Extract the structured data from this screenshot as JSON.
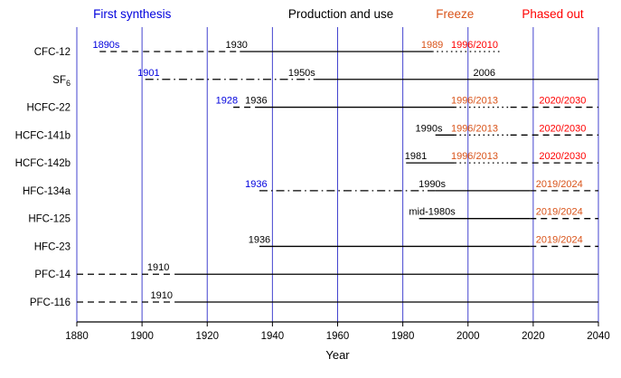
{
  "header_labels": [
    {
      "text": "First synthesis",
      "role": "synthesis",
      "year": 1897
    },
    {
      "text": "Production and use",
      "role": "production",
      "year": 1961
    },
    {
      "text": "Freeze",
      "role": "freeze",
      "year": 1996
    },
    {
      "text": "Phased out",
      "role": "phaseout",
      "year": 2026
    }
  ],
  "chart_data": {
    "type": "timeline",
    "title": "",
    "xlabel": "Year",
    "x_range": [
      1880,
      2040
    ],
    "x_ticks": [
      1880,
      1900,
      1920,
      1940,
      1960,
      1980,
      2000,
      2020,
      2040
    ],
    "grid_on": true,
    "grid_color": "#4343cf",
    "colors": {
      "synthesis": "#0000dd",
      "production": "#000000",
      "freeze": "#d95319",
      "phaseout": "#ff0000"
    },
    "rows": [
      {
        "label": "CFC-12",
        "segments": [
          {
            "from": 1887,
            "to": 1930,
            "style": "dashed"
          },
          {
            "from": 1930,
            "to": 1989,
            "style": "solid"
          },
          {
            "from": 1989,
            "to": 2010,
            "style": "dotted"
          }
        ],
        "annotations": [
          {
            "text": "1890s",
            "year": 1889,
            "role": "synthesis"
          },
          {
            "text": "1930",
            "year": 1929,
            "role": "production"
          },
          {
            "text": "1989",
            "year": 1989,
            "role": "freeze"
          },
          {
            "text": "1996/2010",
            "year": 2002,
            "role": "phaseout"
          }
        ]
      },
      {
        "label": "SF",
        "label_sub": "6",
        "segments": [
          {
            "from": 1901,
            "to": 1953,
            "style": "dashdot"
          },
          {
            "from": 1953,
            "to": 2040,
            "style": "solid"
          }
        ],
        "annotations": [
          {
            "text": "1901",
            "year": 1902,
            "role": "synthesis"
          },
          {
            "text": "1950s",
            "year": 1949,
            "role": "production"
          },
          {
            "text": "2006",
            "year": 2005,
            "role": "production"
          }
        ]
      },
      {
        "label": "HCFC-22",
        "segments": [
          {
            "from": 1928,
            "to": 1936,
            "style": "dashed"
          },
          {
            "from": 1936,
            "to": 1996,
            "style": "solid"
          },
          {
            "from": 1996,
            "to": 2013,
            "style": "dotted"
          },
          {
            "from": 2013,
            "to": 2040,
            "style": "dashed"
          }
        ],
        "annotations": [
          {
            "text": "1928",
            "year": 1926,
            "role": "synthesis"
          },
          {
            "text": "1936",
            "year": 1935,
            "role": "production"
          },
          {
            "text": "1996/2013",
            "year": 2002,
            "role": "freeze"
          },
          {
            "text": "2020/2030",
            "year": 2029,
            "role": "phaseout"
          }
        ]
      },
      {
        "label": "HCFC-141b",
        "segments": [
          {
            "from": 1990,
            "to": 1996,
            "style": "solid"
          },
          {
            "from": 1996,
            "to": 2013,
            "style": "dotted"
          },
          {
            "from": 2013,
            "to": 2040,
            "style": "dashed"
          }
        ],
        "annotations": [
          {
            "text": "1990s",
            "year": 1988,
            "role": "production"
          },
          {
            "text": "1996/2013",
            "year": 2002,
            "role": "freeze"
          },
          {
            "text": "2020/2030",
            "year": 2029,
            "role": "phaseout"
          }
        ]
      },
      {
        "label": "HCFC-142b",
        "segments": [
          {
            "from": 1981,
            "to": 1996,
            "style": "solid"
          },
          {
            "from": 1996,
            "to": 2013,
            "style": "dotted"
          },
          {
            "from": 2013,
            "to": 2040,
            "style": "dashed"
          }
        ],
        "annotations": [
          {
            "text": "1981",
            "year": 1984,
            "role": "production"
          },
          {
            "text": "1996/2013",
            "year": 2002,
            "role": "freeze"
          },
          {
            "text": "2020/2030",
            "year": 2029,
            "role": "phaseout"
          }
        ]
      },
      {
        "label": "HFC-134a",
        "segments": [
          {
            "from": 1936,
            "to": 1990,
            "style": "dashdot"
          },
          {
            "from": 1990,
            "to": 2019,
            "style": "solid"
          },
          {
            "from": 2019,
            "to": 2040,
            "style": "dashed"
          }
        ],
        "annotations": [
          {
            "text": "1936",
            "year": 1935,
            "role": "synthesis"
          },
          {
            "text": "1990s",
            "year": 1989,
            "role": "production"
          },
          {
            "text": "2019/2024",
            "year": 2028,
            "role": "freeze"
          }
        ]
      },
      {
        "label": "HFC-125",
        "segments": [
          {
            "from": 1985,
            "to": 2019,
            "style": "solid"
          },
          {
            "from": 2019,
            "to": 2040,
            "style": "dashed"
          }
        ],
        "annotations": [
          {
            "text": "mid-1980s",
            "year": 1989,
            "role": "production"
          },
          {
            "text": "2019/2024",
            "year": 2028,
            "role": "freeze"
          }
        ]
      },
      {
        "label": "HFC-23",
        "segments": [
          {
            "from": 1936,
            "to": 2019,
            "style": "solid"
          },
          {
            "from": 2019,
            "to": 2040,
            "style": "dashed"
          }
        ],
        "annotations": [
          {
            "text": "1936",
            "year": 1936,
            "role": "production"
          },
          {
            "text": "2019/2024",
            "year": 2028,
            "role": "freeze"
          }
        ]
      },
      {
        "label": "PFC-14",
        "segments": [
          {
            "from": 1880,
            "to": 1910,
            "style": "dashed"
          },
          {
            "from": 1910,
            "to": 2040,
            "style": "solid"
          }
        ],
        "annotations": [
          {
            "text": "1910",
            "year": 1905,
            "role": "production"
          }
        ]
      },
      {
        "label": "PFC-116",
        "segments": [
          {
            "from": 1880,
            "to": 1910,
            "style": "dashed"
          },
          {
            "from": 1910,
            "to": 2040,
            "style": "solid"
          }
        ],
        "annotations": [
          {
            "text": "1910",
            "year": 1906,
            "role": "production"
          }
        ]
      }
    ]
  }
}
